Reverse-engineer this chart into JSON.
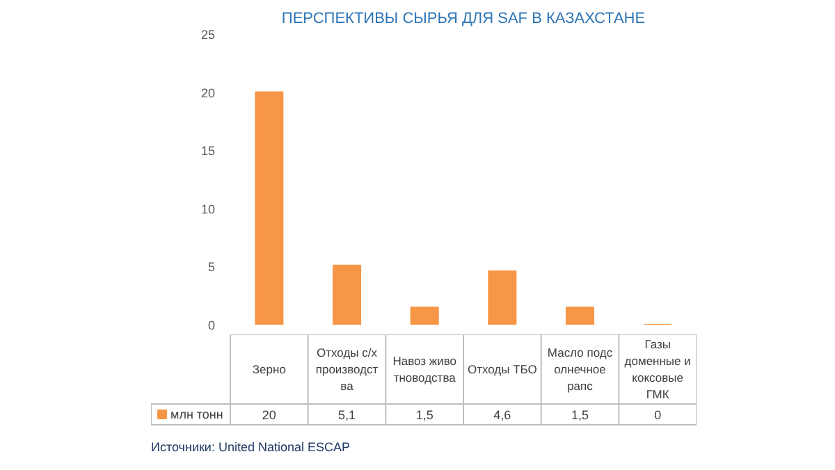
{
  "chart_data": {
    "type": "bar",
    "title": "ПЕРСПЕКТИВЫ СЫРЬЯ ДЛЯ SAF В КАЗАХСТАНЕ",
    "categories": [
      "Зерно",
      "Отходы с/х производства",
      "Навоз животноводства",
      "Отходы ТБО",
      "Масло подсолнечное рапс",
      "Газы доменные и коксовые ГМК"
    ],
    "series": [
      {
        "name": "млн тонн",
        "color": "#f79646",
        "values": [
          20,
          5.1,
          1.5,
          4.6,
          1.5,
          0
        ],
        "value_labels": [
          "20",
          "5,1",
          "1,5",
          "4,6",
          "1,5",
          "0"
        ]
      }
    ],
    "ylim": [
      0,
      25
    ],
    "yticks": [
      0,
      5,
      10,
      15,
      20,
      25
    ],
    "grid": false,
    "legend": "bottom",
    "annotations": [
      "Источники: United National ESCAP"
    ]
  }
}
